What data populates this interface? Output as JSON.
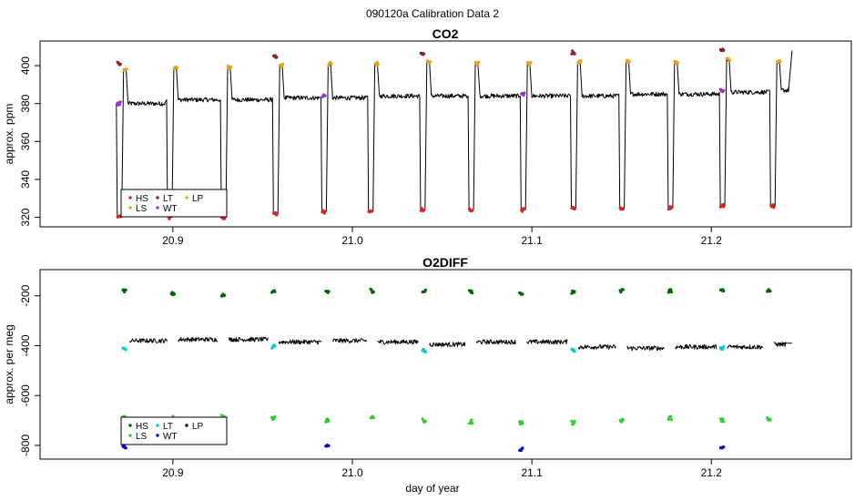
{
  "title": "090120a   Calibration Data 2",
  "colors": {
    "HS": "#dd2222",
    "LS": "#e8a020",
    "LT": "#8b2020",
    "WT": "#9932cc",
    "LP": "#f0b000",
    "O2_HS": "#006400",
    "O2_LS": "#32cd32",
    "O2_LT": "#00cccc",
    "O2_WT": "#0000cd",
    "O2_LP": "#000000",
    "trace": "#000000"
  },
  "chart_data": [
    {
      "type": "line",
      "title": "CO2",
      "xlabel": "",
      "ylabel": "approx. ppm",
      "xlim": [
        20.826,
        21.278
      ],
      "ylim": [
        315,
        413
      ],
      "xticks": [
        "20.9",
        "21.0",
        "21.1",
        "21.2"
      ],
      "yticks": [
        "320",
        "340",
        "360",
        "380",
        "400"
      ],
      "legend": {
        "position": "bottom-left",
        "entries": [
          "HS",
          "LS",
          "LT",
          "WT",
          "LP"
        ]
      },
      "grid": false,
      "cycles": [
        {
          "x": 20.87,
          "baseline": 380,
          "HS": 320,
          "LS": 398,
          "LT": 401,
          "WT": 380
        },
        {
          "x": 20.898,
          "baseline": 382,
          "HS": 320,
          "LS": 399
        },
        {
          "x": 20.928,
          "baseline": 382,
          "HS": 320,
          "LS": 399
        },
        {
          "x": 20.957,
          "baseline": 383,
          "HS": 322,
          "LS": 400,
          "LT": 405
        },
        {
          "x": 20.984,
          "baseline": 383,
          "HS": 323,
          "LS": 401,
          "WT": 384
        },
        {
          "x": 21.01,
          "baseline": 384,
          "HS": 323,
          "LS": 401
        },
        {
          "x": 21.039,
          "baseline": 384,
          "HS": 324,
          "LS": 402,
          "LT": 406
        },
        {
          "x": 21.066,
          "baseline": 384,
          "HS": 324,
          "LS": 401
        },
        {
          "x": 21.095,
          "baseline": 384,
          "HS": 324,
          "LS": 401,
          "WT": 385
        },
        {
          "x": 21.123,
          "baseline": 384,
          "HS": 325,
          "LS": 402,
          "LT": 407
        },
        {
          "x": 21.15,
          "baseline": 385,
          "HS": 325,
          "LS": 402
        },
        {
          "x": 21.177,
          "baseline": 385,
          "HS": 325,
          "LS": 402
        },
        {
          "x": 21.206,
          "baseline": 386,
          "HS": 326,
          "LS": 403,
          "LT": 408,
          "WT": 387
        },
        {
          "x": 21.234,
          "baseline": 387,
          "HS": 326,
          "LS": 402
        }
      ],
      "trace_end": {
        "x": 21.245,
        "y": 408
      }
    },
    {
      "type": "line",
      "title": "O2DIFF",
      "xlabel": "day of year",
      "ylabel": "approx. per meg",
      "xlim": [
        20.826,
        21.278
      ],
      "ylim": [
        -855,
        -95
      ],
      "xticks": [
        "20.9",
        "21.0",
        "21.1",
        "21.2"
      ],
      "yticks": [
        "-800",
        "-600",
        "-400",
        "-200"
      ],
      "legend": {
        "position": "bottom-left",
        "entries": [
          "HS",
          "LS",
          "LT",
          "WT",
          "LP"
        ]
      },
      "grid": false,
      "cycles": [
        {
          "x": 20.873,
          "baseline": -380,
          "HS": -180,
          "LS": -690,
          "LT": -410,
          "WT": -805
        },
        {
          "x": 20.9,
          "baseline": -375,
          "HS": -190,
          "LS": -690
        },
        {
          "x": 20.928,
          "baseline": -375,
          "HS": -195,
          "LS": -685
        },
        {
          "x": 20.956,
          "baseline": -385,
          "HS": -185,
          "LS": -690,
          "LT": -405
        },
        {
          "x": 20.986,
          "baseline": -380,
          "HS": -185,
          "LS": -700,
          "WT": -805
        },
        {
          "x": 21.011,
          "baseline": -385,
          "HS": -180,
          "LS": -690
        },
        {
          "x": 21.04,
          "baseline": -395,
          "HS": -180,
          "LS": -700,
          "LT": -420
        },
        {
          "x": 21.066,
          "baseline": -385,
          "HS": -185,
          "LS": -705
        },
        {
          "x": 21.094,
          "baseline": -385,
          "HS": -190,
          "LS": -710,
          "WT": -815
        },
        {
          "x": 21.123,
          "baseline": -405,
          "HS": -185,
          "LS": -710,
          "LT": -420
        },
        {
          "x": 21.15,
          "baseline": -410,
          "HS": -180,
          "LS": -700
        },
        {
          "x": 21.177,
          "baseline": -405,
          "HS": -180,
          "LS": -690
        },
        {
          "x": 21.206,
          "baseline": -405,
          "HS": -180,
          "LS": -700,
          "LT": -410,
          "WT": -810
        },
        {
          "x": 21.232,
          "baseline": -395,
          "HS": -180,
          "LS": -695
        }
      ],
      "trace_end": {
        "x": 21.245,
        "y": -390
      }
    }
  ]
}
